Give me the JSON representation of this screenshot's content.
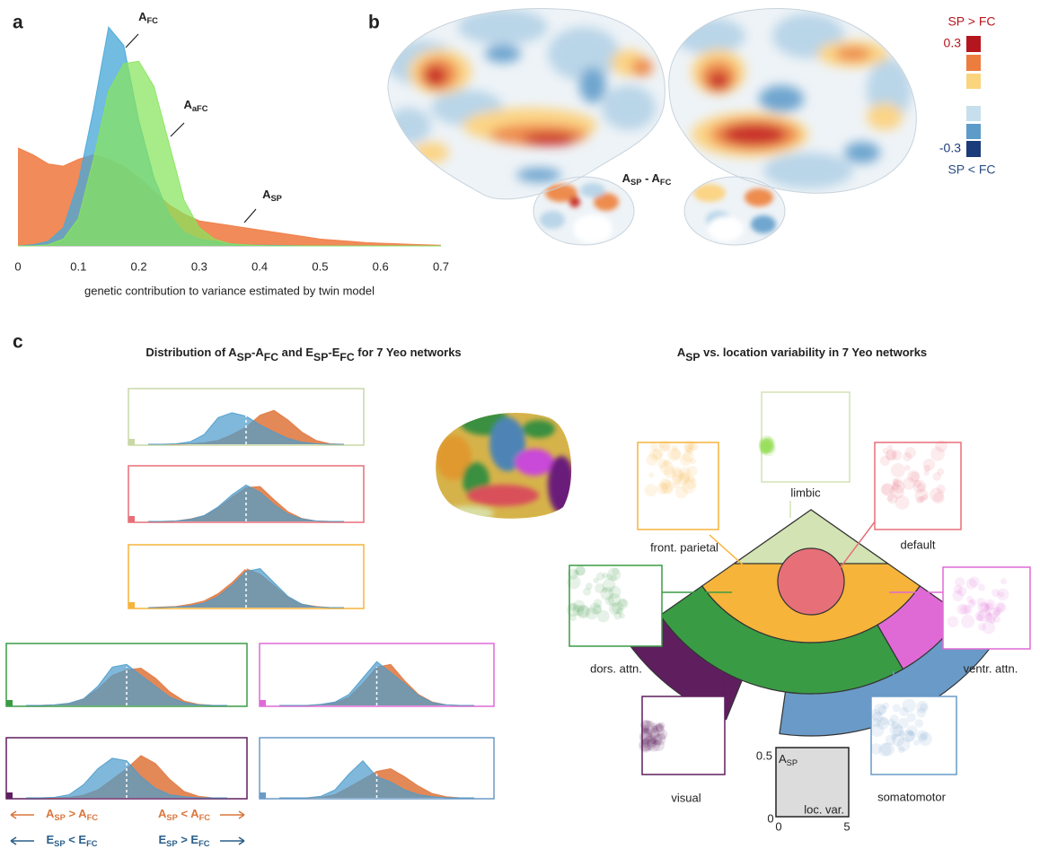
{
  "figure": {
    "panel_labels": [
      "a",
      "b",
      "c"
    ],
    "colorbar": {
      "top_label": "SP > FC",
      "max_label": "0.3",
      "min_label": "-0.3",
      "bottom_label": "SP < FC"
    },
    "brain_label": [
      {
        "text": "A"
      },
      {
        "sub": "SP"
      },
      {
        "text": " - A"
      },
      {
        "sub": "FC"
      }
    ],
    "title_left": [
      {
        "text": "Distribution of A"
      },
      {
        "sub": "SP"
      },
      {
        "text": "-A"
      },
      {
        "sub": "FC"
      },
      {
        "text": " and E"
      },
      {
        "sub": "SP"
      },
      {
        "text": "-E"
      },
      {
        "sub": "FC"
      },
      {
        "text": " for 7 Yeo networks"
      }
    ],
    "title_right": [
      {
        "text": "A"
      },
      {
        "sub": "SP"
      },
      {
        "text": " vs. location variability in 7 Yeo networks"
      }
    ],
    "legend": [
      [
        {
          "text": "A"
        },
        {
          "sub": "SP"
        },
        {
          "text": " > A"
        },
        {
          "sub": "FC"
        }
      ],
      [
        {
          "text": "A"
        },
        {
          "sub": "SP"
        },
        {
          "text": " < A"
        },
        {
          "sub": "FC"
        }
      ],
      [
        {
          "text": "E"
        },
        {
          "sub": "SP"
        },
        {
          "text": " < E"
        },
        {
          "sub": "FC"
        }
      ],
      [
        {
          "text": "E"
        },
        {
          "sub": "SP"
        },
        {
          "text": " > E"
        },
        {
          "sub": "FC"
        }
      ]
    ],
    "networks": [
      {
        "label": "limbic",
        "color": "#d3e3b4"
      },
      {
        "label": "default",
        "color": "#e76f78"
      },
      {
        "label": "front. parietal",
        "color": "#f6b43a"
      },
      {
        "label": "dors. attn.",
        "color": "#3a9b45"
      },
      {
        "label": "ventr. attn.",
        "color": "#df6ad6"
      },
      {
        "label": "visual",
        "color": "#5f1f5f"
      },
      {
        "label": "somatomotor",
        "color": "#6a9ac7"
      }
    ],
    "scatter_axes": {
      "ymax_label": "0.5",
      "ymin_label": "0",
      "xmin_label": "0",
      "xmax_label": "5",
      "ylabel": [
        {
          "text": "A"
        },
        {
          "sub": "SP"
        }
      ],
      "xlabel": "loc. var."
    }
  },
  "chart_data": [
    {
      "type": "area",
      "x": [
        0,
        0.025,
        0.05,
        0.075,
        0.1,
        0.125,
        0.15,
        0.175,
        0.2,
        0.225,
        0.25,
        0.275,
        0.3,
        0.325,
        0.35,
        0.375,
        0.4,
        0.425,
        0.45,
        0.475,
        0.5,
        0.525,
        0.55,
        0.575,
        0.6,
        0.625,
        0.65,
        0.675,
        0.7
      ],
      "xlim": [
        0,
        0.7
      ],
      "xticks": [
        0,
        0.1,
        0.2,
        0.3,
        0.4,
        0.5,
        0.6,
        0.7
      ],
      "ylim": [
        0,
        100
      ],
      "xlabel": "genetic contribution to variance estimated by twin model",
      "series": [
        {
          "name": [
            {
              "text": "A"
            },
            {
              "sub": "SP"
            }
          ],
          "color": "#f07e47",
          "values": [
            43,
            40,
            36,
            35,
            38,
            40,
            38,
            35,
            30,
            24,
            18,
            14,
            11,
            10,
            9,
            8,
            7,
            6,
            5,
            4,
            3,
            2.5,
            2,
            1.5,
            1.2,
            1,
            0.7,
            0.5,
            0.3
          ]
        },
        {
          "name": [
            {
              "text": "A"
            },
            {
              "sub": "FC"
            }
          ],
          "color": "#4aa8d8",
          "values": [
            0,
            0.5,
            2,
            8,
            28,
            60,
            96,
            88,
            55,
            30,
            14,
            6,
            3,
            2,
            1,
            0.5,
            0.3,
            0.2,
            0.1,
            0,
            0,
            0,
            0,
            0,
            0,
            0,
            0,
            0,
            0
          ]
        },
        {
          "name": [
            {
              "text": "A"
            },
            {
              "sub": "aFC"
            }
          ],
          "color": "#86e55b",
          "values": [
            0,
            0,
            0.5,
            3,
            12,
            38,
            68,
            80,
            81,
            70,
            45,
            20,
            8,
            3,
            1,
            0.5,
            0.2,
            0,
            0,
            0,
            0,
            0,
            0,
            0,
            0,
            0,
            0,
            0,
            0
          ]
        }
      ]
    },
    {
      "type": "area",
      "ylim": [
        0,
        100
      ],
      "frame_color": "#c9d8a6",
      "series": [
        {
          "color": "#e07b45",
          "values": [
            0,
            0,
            0,
            1,
            3,
            8,
            20,
            35,
            60,
            70,
            50,
            25,
            8,
            1,
            0
          ]
        },
        {
          "color": "#4e9ccc",
          "values": [
            0,
            0,
            1,
            5,
            20,
            55,
            65,
            58,
            40,
            25,
            12,
            4,
            1,
            0,
            0
          ]
        }
      ]
    },
    {
      "type": "area",
      "ylim": [
        0,
        100
      ],
      "frame_color": "#e76f78",
      "series": [
        {
          "color": "#e07b45",
          "values": [
            0,
            0,
            1,
            5,
            12,
            28,
            50,
            70,
            72,
            45,
            20,
            6,
            1,
            0,
            0
          ]
        },
        {
          "color": "#4e9ccc",
          "values": [
            0,
            0,
            1,
            4,
            12,
            30,
            55,
            75,
            60,
            35,
            15,
            5,
            1,
            0,
            0
          ]
        }
      ]
    },
    {
      "type": "area",
      "ylim": [
        0,
        100
      ],
      "frame_color": "#f6b43a",
      "series": [
        {
          "color": "#e07b45",
          "values": [
            0,
            1,
            2,
            6,
            12,
            25,
            45,
            70,
            60,
            40,
            18,
            6,
            2,
            0,
            0
          ]
        },
        {
          "color": "#4e9ccc",
          "values": [
            0,
            0,
            1,
            3,
            8,
            20,
            40,
            65,
            70,
            45,
            20,
            6,
            1,
            0,
            0
          ]
        }
      ]
    },
    {
      "type": "area",
      "ylim": [
        0,
        100
      ],
      "frame_color": "#3a9b45",
      "series": [
        {
          "color": "#e07b45",
          "values": [
            0,
            0,
            1,
            4,
            12,
            30,
            55,
            65,
            68,
            50,
            25,
            8,
            2,
            0,
            0
          ]
        },
        {
          "color": "#4e9ccc",
          "values": [
            0,
            0,
            1,
            4,
            12,
            35,
            70,
            75,
            55,
            35,
            15,
            5,
            1,
            0,
            0
          ]
        }
      ]
    },
    {
      "type": "area",
      "ylim": [
        0,
        100
      ],
      "frame_color": "#df6ad6",
      "series": [
        {
          "color": "#e07b45",
          "values": [
            0,
            0,
            0,
            1,
            5,
            15,
            40,
            70,
            75,
            45,
            20,
            6,
            1,
            0,
            0
          ]
        },
        {
          "color": "#4e9ccc",
          "values": [
            0,
            0,
            0,
            2,
            6,
            20,
            50,
            80,
            60,
            40,
            18,
            5,
            1,
            0,
            0
          ]
        }
      ]
    },
    {
      "type": "area",
      "ylim": [
        0,
        100
      ],
      "frame_color": "#5f1f5f",
      "series": [
        {
          "color": "#e07b45",
          "values": [
            0,
            0,
            0,
            1,
            5,
            15,
            35,
            55,
            80,
            65,
            35,
            12,
            3,
            0,
            0
          ]
        },
        {
          "color": "#4e9ccc",
          "values": [
            0,
            0,
            1,
            6,
            25,
            55,
            75,
            70,
            40,
            18,
            6,
            2,
            0,
            0,
            0
          ]
        }
      ]
    },
    {
      "type": "area",
      "ylim": [
        0,
        100
      ],
      "frame_color": "#6a9ac7",
      "series": [
        {
          "color": "#e07b45",
          "values": [
            0,
            0,
            0,
            1,
            6,
            20,
            35,
            50,
            55,
            40,
            22,
            8,
            2,
            0,
            0
          ]
        },
        {
          "color": "#4e9ccc",
          "values": [
            0,
            0,
            0,
            3,
            15,
            45,
            70,
            40,
            30,
            15,
            6,
            2,
            0,
            0,
            0
          ]
        }
      ]
    }
  ]
}
